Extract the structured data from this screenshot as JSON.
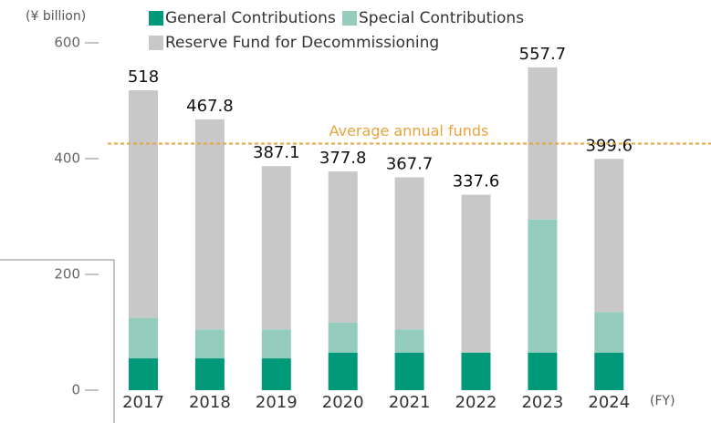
{
  "chart_data": {
    "type": "stacked_bar",
    "y_unit": "(¥ billion)",
    "x_unit": "(FY)",
    "categories": [
      "2017",
      "2018",
      "2019",
      "2020",
      "2021",
      "2022",
      "2023",
      "2024"
    ],
    "series": [
      {
        "name": "General Contributions",
        "color": "#009a7a",
        "values": [
          55,
          55,
          55,
          65,
          65,
          65,
          65,
          65
        ]
      },
      {
        "name": "Special Contributions",
        "color": "#93cbbd",
        "values": [
          70,
          50,
          50,
          52,
          40,
          0,
          230,
          70
        ]
      },
      {
        "name": "Reserve Fund for Decommissioning",
        "color": "#c8c8c8",
        "values": [
          393,
          362.8,
          282.1,
          260.8,
          262.7,
          272.6,
          262.7,
          264.6
        ]
      }
    ],
    "totals": [
      518,
      467.8,
      387.1,
      377.8,
      367.7,
      337.6,
      557.7,
      399.6
    ],
    "average_line": {
      "label": "Average annual funds",
      "value": 426,
      "color": "#e8a33a"
    },
    "ylim": [
      0,
      600
    ],
    "yticks": [
      0,
      200,
      400,
      600
    ]
  }
}
